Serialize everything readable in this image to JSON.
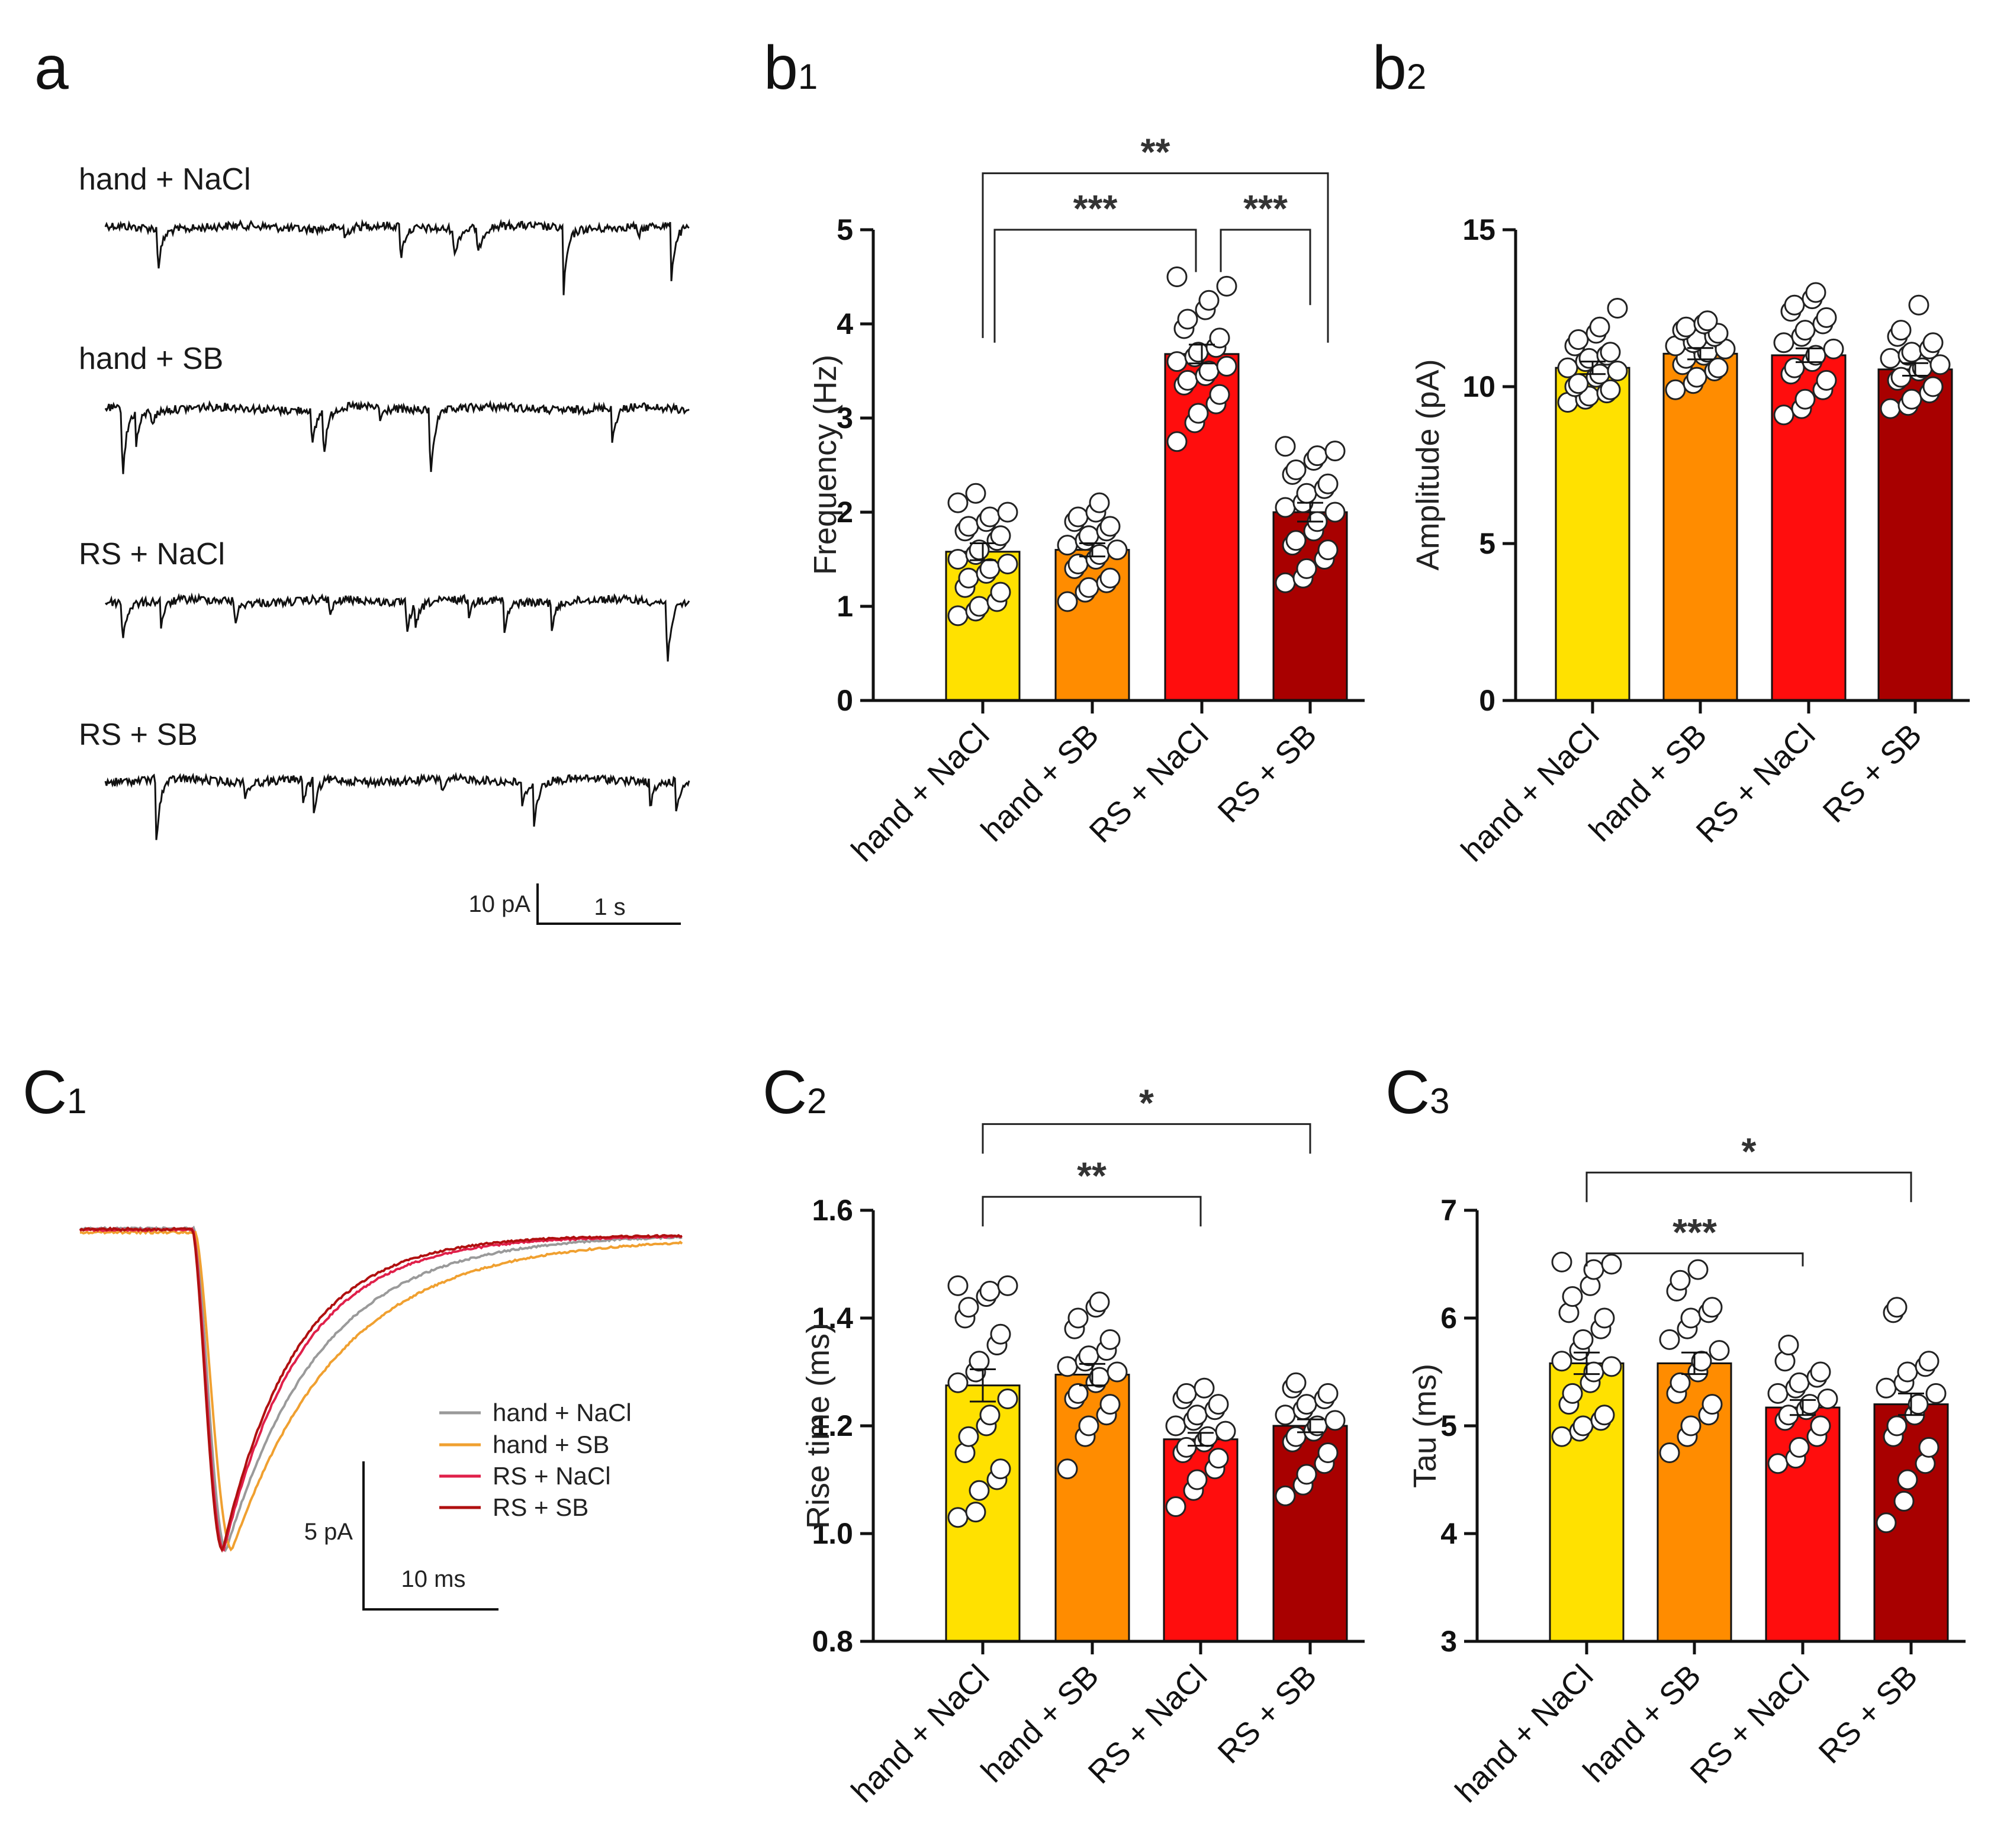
{
  "groups": [
    "hand + NaCl",
    "hand + SB",
    "RS + NaCl",
    "RS + SB"
  ],
  "colors": [
    "#FFE100",
    "#FF8C00",
    "#FF0D0D",
    "#A80000"
  ],
  "panel_a": {
    "label": "a",
    "traces": [
      "hand + NaCl",
      "hand + SB",
      "RS + NaCl",
      "RS + SB"
    ],
    "scale_y": "10 pA",
    "scale_x": "1 s"
  },
  "panel_c1": {
    "label": "C",
    "sub": "1",
    "legend": [
      "hand + NaCl",
      "hand + SB",
      "RS + NaCl",
      "RS + SB"
    ],
    "legend_colors": [
      "#9A9A9A",
      "#F0A030",
      "#E0204A",
      "#B01010"
    ],
    "scale_y": "5 pA",
    "scale_x": "10 ms"
  },
  "chart_data": [
    {
      "id": "b1",
      "label": "b",
      "sub": "1",
      "type": "bar",
      "categories": [
        "hand + NaCl",
        "hand + SB",
        "RS + NaCl",
        "RS + SB"
      ],
      "values": [
        1.58,
        1.6,
        3.68,
        2.0
      ],
      "sem": [
        0.09,
        0.07,
        0.1,
        0.1
      ],
      "ylabel": "Frequency (Hz)",
      "ylim": [
        0,
        5
      ],
      "yticks": [
        0,
        1,
        2,
        3,
        4,
        5
      ],
      "ytick_labels": [
        "0",
        "1",
        "2",
        "3",
        "4",
        "5"
      ],
      "points": [
        [
          0.9,
          0.95,
          1.0,
          1.05,
          1.15,
          1.2,
          1.3,
          1.35,
          1.4,
          1.45,
          1.5,
          1.55,
          1.6,
          1.7,
          1.75,
          1.8,
          1.85,
          1.9,
          1.95,
          2.0,
          2.1,
          2.2
        ],
        [
          1.05,
          1.15,
          1.2,
          1.25,
          1.3,
          1.4,
          1.45,
          1.5,
          1.55,
          1.6,
          1.65,
          1.7,
          1.75,
          1.8,
          1.85,
          1.9,
          1.95,
          2.0,
          2.1
        ],
        [
          2.75,
          2.95,
          3.05,
          3.15,
          3.25,
          3.35,
          3.4,
          3.45,
          3.5,
          3.55,
          3.6,
          3.65,
          3.7,
          3.75,
          3.85,
          3.95,
          4.05,
          4.15,
          4.25,
          4.4,
          4.5
        ],
        [
          1.25,
          1.3,
          1.4,
          1.5,
          1.6,
          1.65,
          1.7,
          1.8,
          1.9,
          2.0,
          2.05,
          2.1,
          2.2,
          2.25,
          2.3,
          2.4,
          2.45,
          2.55,
          2.6,
          2.65,
          2.7
        ]
      ],
      "brackets": [
        {
          "from": 0,
          "to": 2,
          "level": 5.0,
          "label": "***"
        },
        {
          "from": 2,
          "to": 3,
          "level": 5.0,
          "label": "***"
        },
        {
          "from": 0,
          "to": 3,
          "level": 5.6,
          "label": "**"
        }
      ]
    },
    {
      "id": "b2",
      "label": "b",
      "sub": "2",
      "type": "bar",
      "categories": [
        "hand + NaCl",
        "hand + SB",
        "RS + NaCl",
        "RS + SB"
      ],
      "values": [
        10.6,
        11.05,
        11.0,
        10.55
      ],
      "sem": [
        0.2,
        0.18,
        0.22,
        0.2
      ],
      "ylabel": "Amplitude (pA)",
      "ylim": [
        0,
        15
      ],
      "yticks": [
        0,
        5,
        10,
        15
      ],
      "ytick_labels": [
        "0",
        "5",
        "10",
        "15"
      ],
      "points": [
        [
          9.5,
          9.6,
          9.7,
          9.8,
          9.9,
          10.0,
          10.1,
          10.3,
          10.4,
          10.5,
          10.6,
          10.8,
          10.9,
          11.0,
          11.1,
          11.3,
          11.5,
          11.7,
          11.9,
          12.5
        ],
        [
          9.9,
          10.1,
          10.3,
          10.5,
          10.6,
          10.7,
          10.9,
          11.0,
          11.1,
          11.2,
          11.3,
          11.4,
          11.5,
          11.6,
          11.7,
          11.8,
          11.9,
          12.0,
          12.1
        ],
        [
          9.1,
          9.3,
          9.6,
          9.9,
          10.2,
          10.4,
          10.6,
          10.8,
          11.0,
          11.2,
          11.4,
          11.6,
          11.8,
          12.0,
          12.2,
          12.4,
          12.6,
          12.8,
          13.0
        ],
        [
          9.3,
          9.4,
          9.6,
          9.8,
          10.0,
          10.2,
          10.3,
          10.5,
          10.6,
          10.7,
          10.9,
          11.0,
          11.1,
          11.2,
          11.4,
          11.6,
          11.8,
          12.6
        ]
      ],
      "brackets": []
    },
    {
      "id": "c2",
      "label": "C",
      "sub": "2",
      "type": "bar",
      "categories": [
        "hand + NaCl",
        "hand + SB",
        "RS + NaCl",
        "RS + SB"
      ],
      "values": [
        1.275,
        1.295,
        1.175,
        1.2
      ],
      "sem": [
        0.03,
        0.02,
        0.012,
        0.012
      ],
      "ylabel": "Rise time (ms)",
      "ylim": [
        0.8,
        1.6
      ],
      "yticks": [
        0.8,
        1.0,
        1.2,
        1.4,
        1.6
      ],
      "ytick_labels": [
        "0.8",
        "1.0",
        "1.2",
        "1.4",
        "1.6"
      ],
      "points": [
        [
          1.03,
          1.04,
          1.08,
          1.1,
          1.12,
          1.15,
          1.18,
          1.2,
          1.22,
          1.25,
          1.28,
          1.3,
          1.32,
          1.35,
          1.37,
          1.4,
          1.42,
          1.44,
          1.45,
          1.46,
          1.46
        ],
        [
          1.12,
          1.18,
          1.2,
          1.22,
          1.24,
          1.25,
          1.26,
          1.28,
          1.29,
          1.3,
          1.31,
          1.32,
          1.33,
          1.34,
          1.36,
          1.38,
          1.4,
          1.42,
          1.43
        ],
        [
          1.05,
          1.08,
          1.1,
          1.12,
          1.14,
          1.15,
          1.16,
          1.17,
          1.18,
          1.19,
          1.2,
          1.21,
          1.22,
          1.23,
          1.24,
          1.25,
          1.26,
          1.27
        ],
        [
          1.07,
          1.09,
          1.11,
          1.13,
          1.15,
          1.17,
          1.18,
          1.19,
          1.2,
          1.21,
          1.22,
          1.23,
          1.24,
          1.25,
          1.26,
          1.27,
          1.28
        ]
      ],
      "brackets": [
        {
          "from": 0,
          "to": 2,
          "level": 1.625,
          "label": "**"
        },
        {
          "from": 0,
          "to": 3,
          "level": 1.76,
          "label": "*"
        }
      ]
    },
    {
      "id": "c3",
      "label": "C",
      "sub": "3",
      "type": "bar",
      "categories": [
        "hand + NaCl",
        "hand + SB",
        "RS + NaCl",
        "RS + SB"
      ],
      "values": [
        5.58,
        5.58,
        5.17,
        5.2
      ],
      "sem": [
        0.1,
        0.1,
        0.07,
        0.1
      ],
      "ylabel": "Tau (ms)",
      "ylim": [
        3,
        7
      ],
      "yticks": [
        3,
        4,
        5,
        6,
        7
      ],
      "ytick_labels": [
        "3",
        "4",
        "5",
        "6",
        "7"
      ],
      "points": [
        [
          4.9,
          4.95,
          5.0,
          5.05,
          5.1,
          5.2,
          5.3,
          5.4,
          5.5,
          5.55,
          5.6,
          5.7,
          5.8,
          5.9,
          6.0,
          6.05,
          6.2,
          6.3,
          6.45,
          6.5,
          6.52
        ],
        [
          4.75,
          4.9,
          5.0,
          5.1,
          5.2,
          5.3,
          5.4,
          5.5,
          5.6,
          5.7,
          5.8,
          5.9,
          6.0,
          6.05,
          6.1,
          6.25,
          6.35,
          6.45
        ],
        [
          4.65,
          4.7,
          4.8,
          4.9,
          5.0,
          5.05,
          5.1,
          5.15,
          5.2,
          5.25,
          5.3,
          5.35,
          5.4,
          5.45,
          5.5,
          5.6,
          5.75
        ],
        [
          4.1,
          4.3,
          4.5,
          4.65,
          4.8,
          4.9,
          5.0,
          5.1,
          5.2,
          5.3,
          5.35,
          5.4,
          5.5,
          5.55,
          5.6,
          6.05,
          6.1
        ]
      ],
      "brackets": [
        {
          "from": 0,
          "to": 2,
          "level": 6.6,
          "label": "***"
        },
        {
          "from": 0,
          "to": 3,
          "level": 7.35,
          "label": "*"
        }
      ]
    }
  ]
}
